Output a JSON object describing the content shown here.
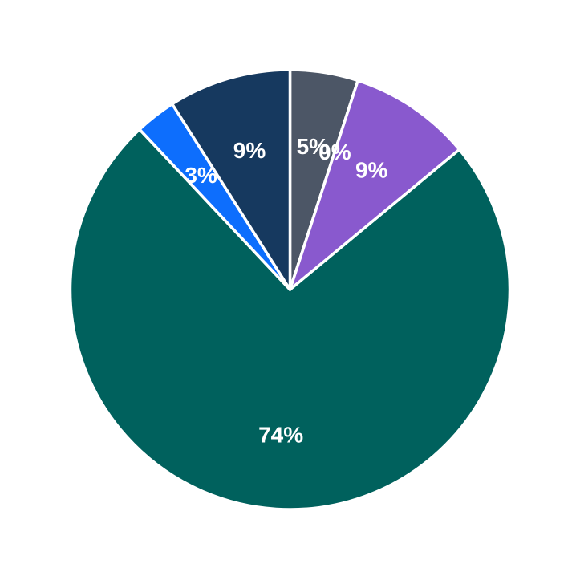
{
  "page": {
    "background_color": "#ffffff",
    "title": ""
  },
  "chart_data": {
    "type": "pie",
    "title": "",
    "legend": "none",
    "start_angle": "12-o'clock",
    "direction": "clockwise",
    "slices": [
      {
        "label": "5%",
        "value": 5,
        "color": "#4c5666"
      },
      {
        "label": "0%",
        "value": 0,
        "color": "#ffffff"
      },
      {
        "label": "9%",
        "value": 9,
        "color": "#8959ce"
      },
      {
        "label": "74%",
        "value": 74,
        "color": "#00615d"
      },
      {
        "label": "3%",
        "value": 3,
        "color": "#0d6efd"
      },
      {
        "label": "9%",
        "value": 9,
        "color": "#16395f"
      }
    ],
    "style": {
      "edge_color": "#ffffff",
      "edge_width": 3.5,
      "label_color": "#ffffff"
    }
  }
}
